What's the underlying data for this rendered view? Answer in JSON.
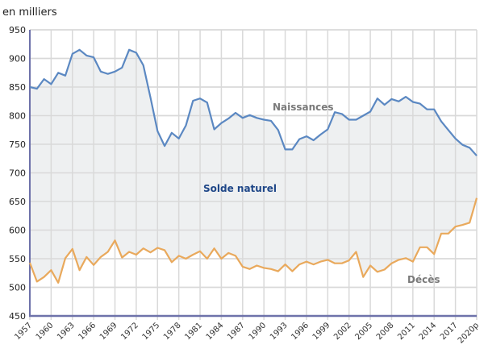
{
  "chart_data": {
    "type": "line",
    "unit_label": "en milliers",
    "title": "",
    "xlabel": "",
    "ylabel": "en milliers",
    "ylim": [
      450,
      950
    ],
    "yticks": [
      "450",
      "500",
      "550",
      "600",
      "650",
      "700",
      "750",
      "800",
      "850",
      "900",
      "950"
    ],
    "xlim": [
      1957,
      2020
    ],
    "xticks": [
      "1957",
      "1960",
      "1963",
      "1966",
      "1969",
      "1972",
      "1975",
      "1978",
      "1981",
      "1984",
      "1987",
      "1990",
      "1993",
      "1996",
      "1999",
      "2002",
      "2005",
      "2008",
      "2011",
      "2014",
      "2017",
      "2020p"
    ],
    "grid": true,
    "x": [
      1957,
      1958,
      1959,
      1960,
      1961,
      1962,
      1963,
      1964,
      1965,
      1966,
      1967,
      1968,
      1969,
      1970,
      1971,
      1972,
      1973,
      1974,
      1975,
      1976,
      1977,
      1978,
      1979,
      1980,
      1981,
      1982,
      1983,
      1984,
      1985,
      1986,
      1987,
      1988,
      1989,
      1990,
      1991,
      1992,
      1993,
      1994,
      1995,
      1996,
      1997,
      1998,
      1999,
      2000,
      2001,
      2002,
      2003,
      2004,
      2005,
      2006,
      2007,
      2008,
      2009,
      2010,
      2011,
      2012,
      2013,
      2014,
      2015,
      2016,
      2017,
      2018,
      2019,
      2020
    ],
    "series": [
      {
        "name": "Naissances",
        "color": "#5b88c2",
        "values": [
          850,
          847,
          864,
          855,
          875,
          870,
          908,
          915,
          905,
          902,
          877,
          873,
          877,
          884,
          915,
          910,
          888,
          832,
          773,
          747,
          770,
          760,
          783,
          826,
          830,
          823,
          776,
          787,
          795,
          805,
          796,
          801,
          796,
          793,
          791,
          775,
          741,
          741,
          759,
          764,
          757,
          767,
          776,
          806,
          803,
          793,
          793,
          800,
          807,
          830,
          819,
          829,
          825,
          833,
          824,
          821,
          811,
          811,
          790,
          775,
          760,
          749,
          744,
          730
        ]
      },
      {
        "name": "Décès",
        "color": "#e9a95c",
        "values": [
          543,
          510,
          518,
          530,
          508,
          551,
          567,
          530,
          553,
          539,
          553,
          562,
          582,
          552,
          562,
          557,
          568,
          561,
          569,
          565,
          544,
          555,
          550,
          557,
          563,
          550,
          568,
          550,
          560,
          555,
          536,
          532,
          538,
          534,
          532,
          528,
          540,
          528,
          540,
          545,
          540,
          545,
          548,
          542,
          542,
          547,
          562,
          518,
          538,
          527,
          531,
          542,
          548,
          551,
          545,
          570,
          570,
          558,
          594,
          594,
          606,
          609,
          613,
          656
        ]
      }
    ],
    "annotations": {
      "births": "Naissances",
      "deaths": "Décès",
      "gap": "Solde naturel"
    },
    "fill_color": "#eef0f1",
    "axis_color": "#6e72aa",
    "label_gray": "#7a7a7a",
    "label_blue": "#1f4788"
  }
}
